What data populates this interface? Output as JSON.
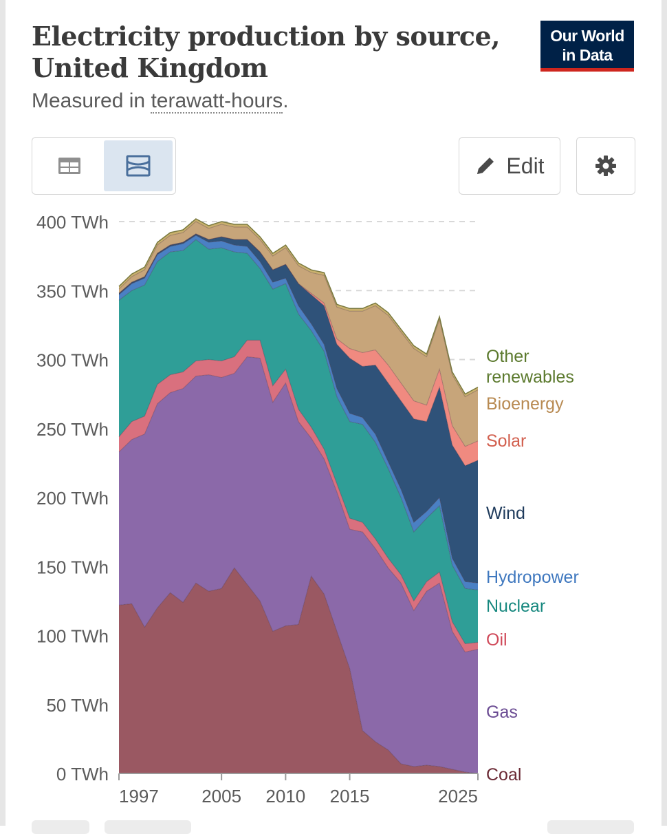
{
  "header": {
    "title": "Electricity production by source, United Kingdom",
    "subtitle_prefix": "Measured in ",
    "subtitle_link": "terawatt-hours",
    "subtitle_suffix": "."
  },
  "logo": {
    "line1": "Our World",
    "line2": "in Data"
  },
  "controls": {
    "edit_label": "Edit"
  },
  "colors": {
    "coal": "#9a5862",
    "gas": "#8b69a9",
    "oil": "#d9707e",
    "nuclear": "#2f9e97",
    "hydropower": "#4a80c4",
    "wind": "#2f5279",
    "solar": "#f08a80",
    "bioenergy": "#c7a57a",
    "other": "#c9b06d"
  },
  "chart_data": {
    "type": "area",
    "stacked": true,
    "title": "Electricity production by source, United Kingdom",
    "ylabel": "Measured in terawatt-hours",
    "unit": "TWh",
    "ylim": [
      0,
      400
    ],
    "yticks": [
      0,
      50,
      100,
      150,
      200,
      250,
      300,
      350,
      400
    ],
    "ytick_labels": [
      "0 TWh",
      "50 TWh",
      "100 TWh",
      "150 TWh",
      "200 TWh",
      "250 TWh",
      "300 TWh",
      "350 TWh",
      "400 TWh"
    ],
    "xticks": [
      1997,
      2005,
      2010,
      2015,
      2025
    ],
    "xtick_labels": [
      "1997",
      "2005",
      "2010",
      "2015",
      "2025"
    ],
    "grid": true,
    "x": [
      1997,
      1998,
      1999,
      2000,
      2001,
      2002,
      2003,
      2004,
      2005,
      2006,
      2007,
      2008,
      2009,
      2010,
      2011,
      2012,
      2013,
      2014,
      2015,
      2016,
      2017,
      2018,
      2019,
      2020,
      2021,
      2022,
      2023,
      2024,
      2025
    ],
    "series": [
      {
        "name": "Coal",
        "label": "Coal",
        "color": "#9a5862",
        "label_color": "#6b2a35",
        "values": [
          122,
          123,
          106,
          120,
          131,
          124,
          138,
          132,
          134,
          149,
          137,
          125,
          103,
          107,
          108,
          143,
          130,
          103,
          76,
          31,
          23,
          17,
          7,
          5,
          6,
          5,
          3,
          1,
          0
        ]
      },
      {
        "name": "Gas",
        "label": "Gas",
        "color": "#8b69a9",
        "label_color": "#6b4c93",
        "values": [
          111,
          119,
          140,
          148,
          145,
          155,
          150,
          157,
          153,
          141,
          165,
          176,
          166,
          176,
          147,
          100,
          98,
          101,
          101,
          144,
          140,
          132,
          131,
          113,
          126,
          133,
          100,
          87,
          90
        ]
      },
      {
        "name": "Oil",
        "label": "Oil",
        "color": "#d9707e",
        "label_color": "#d04a5a",
        "values": [
          11,
          13,
          13,
          14,
          13,
          12,
          11,
          11,
          12,
          12,
          12,
          13,
          12,
          10,
          9,
          8,
          7,
          6,
          8,
          7,
          7,
          7,
          6,
          7,
          7,
          8,
          7,
          6,
          5
        ]
      },
      {
        "name": "Nuclear",
        "label": "Nuclear",
        "color": "#2f9e97",
        "label_color": "#17887f",
        "values": [
          99,
          95,
          95,
          89,
          89,
          88,
          88,
          80,
          82,
          76,
          63,
          52,
          70,
          62,
          69,
          70,
          71,
          63,
          70,
          71,
          70,
          65,
          56,
          50,
          46,
          48,
          41,
          40,
          38
        ]
      },
      {
        "name": "Hydropower",
        "label": "Hydropower",
        "color": "#4a80c4",
        "label_color": "#3f78bf",
        "values": [
          4,
          5,
          5,
          5,
          4,
          5,
          3,
          5,
          5,
          5,
          5,
          5,
          5,
          4,
          6,
          5,
          5,
          6,
          6,
          5,
          6,
          5,
          6,
          7,
          5,
          6,
          5,
          5,
          5
        ]
      },
      {
        "name": "Wind",
        "label": "Wind",
        "color": "#2f5279",
        "label_color": "#1f3b5c",
        "values": [
          1,
          1,
          1,
          1,
          1,
          1,
          1,
          2,
          3,
          4,
          5,
          7,
          9,
          10,
          16,
          21,
          28,
          32,
          40,
          37,
          50,
          57,
          64,
          75,
          65,
          80,
          82,
          84,
          89
        ]
      },
      {
        "name": "Solar",
        "label": "Solar",
        "color": "#f08a80",
        "label_color": "#d2604f",
        "values": [
          0,
          0,
          0,
          0,
          0,
          0,
          0,
          0,
          0,
          0,
          0,
          0,
          0,
          0,
          0,
          1,
          2,
          4,
          7,
          10,
          11,
          13,
          13,
          13,
          12,
          13,
          14,
          14,
          14
        ]
      },
      {
        "name": "Bioenergy",
        "label": "Bioenergy",
        "color": "#c7a57a",
        "label_color": "#b88a52",
        "values": [
          3,
          4,
          5,
          6,
          7,
          7,
          9,
          8,
          9,
          9,
          9,
          9,
          10,
          12,
          13,
          15,
          20,
          23,
          27,
          30,
          32,
          36,
          37,
          38,
          35,
          36,
          37,
          36,
          37
        ]
      },
      {
        "name": "Other renewables",
        "label": "Other renewables",
        "color": "#c9b06d",
        "label_color": "#5c7a2e",
        "values": [
          2,
          2,
          2,
          2,
          2,
          2,
          2,
          2,
          2,
          2,
          2,
          2,
          2,
          2,
          2,
          2,
          2,
          2,
          2,
          2,
          2,
          2,
          2,
          2,
          2,
          2,
          2,
          2,
          2
        ]
      }
    ]
  }
}
